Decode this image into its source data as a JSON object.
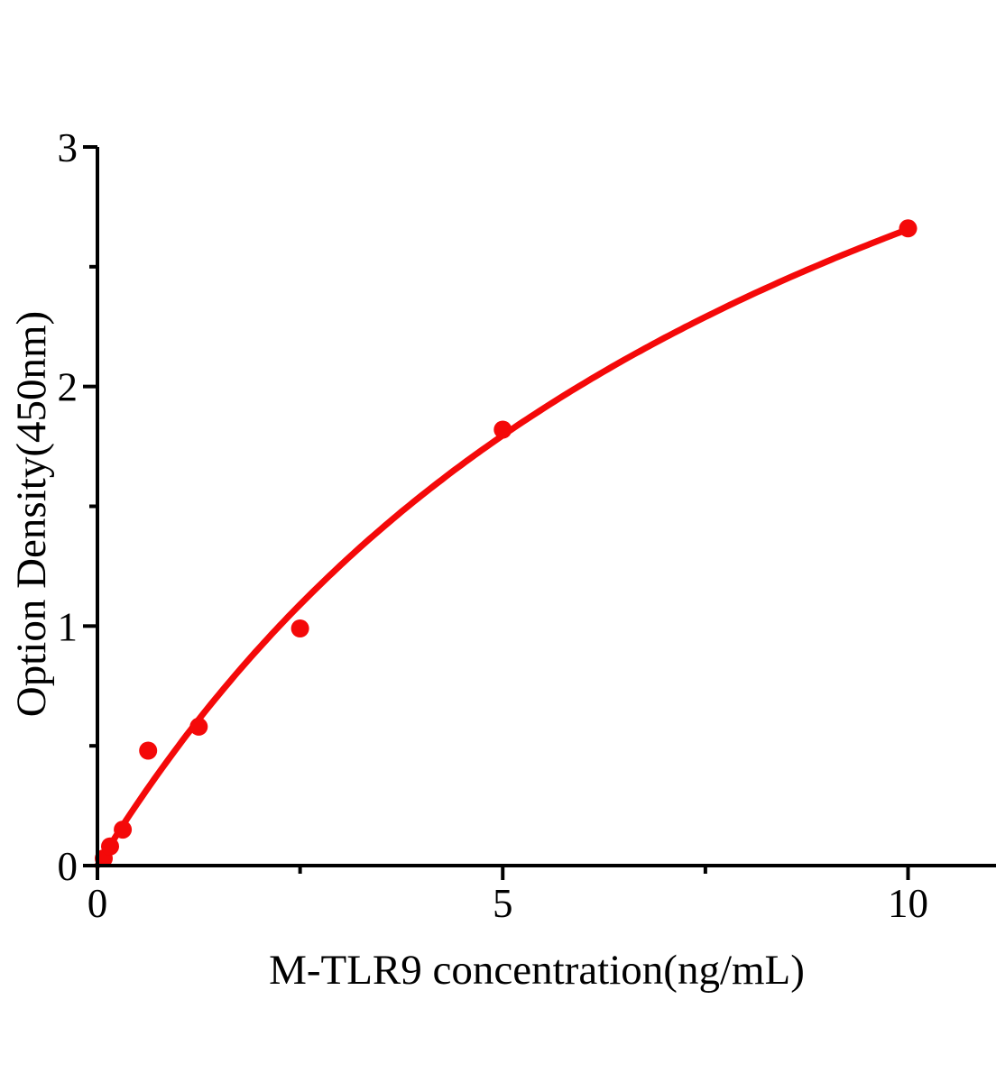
{
  "chart_data": {
    "type": "scatter",
    "title": "",
    "xlabel": "M-TLR9 concentration(ng/mL)",
    "ylabel": "Option Density(450nm)",
    "x": [
      0.078,
      0.156,
      0.3125,
      0.625,
      1.25,
      2.5,
      5,
      10
    ],
    "y": [
      0.03,
      0.08,
      0.15,
      0.48,
      0.58,
      0.99,
      1.82,
      2.66
    ],
    "xlim": [
      0,
      11.1
    ],
    "ylim": [
      0,
      3
    ],
    "x_major_ticks": [
      0,
      5,
      10
    ],
    "x_minor_ticks": [
      2.5,
      7.5
    ],
    "y_major_ticks": [
      0,
      1,
      2,
      3
    ],
    "y_minor_ticks": [
      0.5,
      1.5,
      2.5
    ],
    "grid": false,
    "legend": "none",
    "marker_color": "#f40909",
    "curve_color": "#f40909",
    "axis_color": "#000000",
    "curve_fit": {
      "type": "michaelis_menten",
      "a": 5.1,
      "b": 9.2,
      "x_start": 0,
      "x_end": 10
    }
  }
}
